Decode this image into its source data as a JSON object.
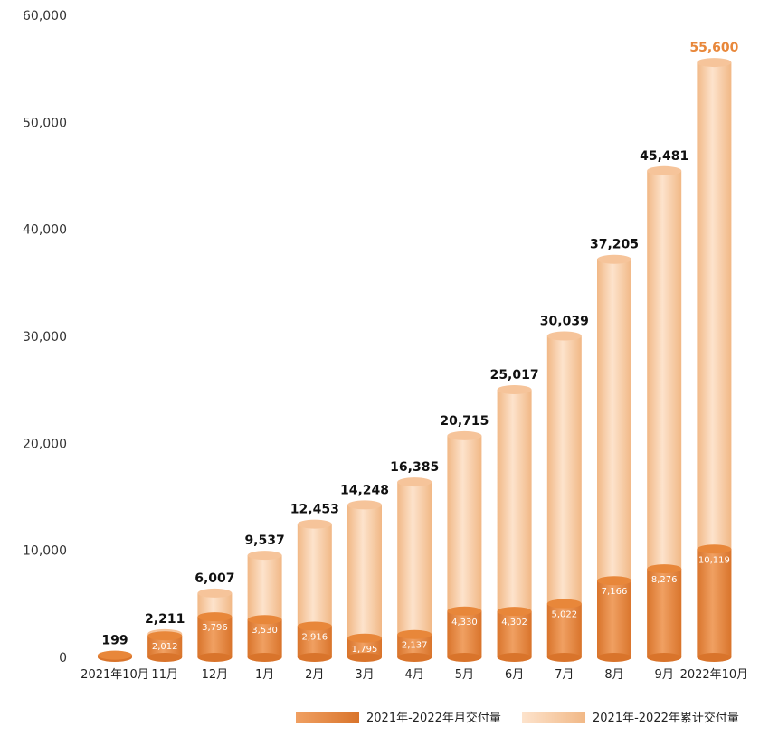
{
  "chart_data": {
    "type": "bar",
    "categories": [
      "2021年10月",
      "11月",
      "12月",
      "1月",
      "2月",
      "3月",
      "4月",
      "5月",
      "6月",
      "7月",
      "8月",
      "9月",
      "2022年10月"
    ],
    "series": [
      {
        "name": "2021年-2022年月交付量",
        "values": [
          199,
          2012,
          3796,
          3530,
          2916,
          1795,
          2137,
          4330,
          4302,
          5022,
          7166,
          8276,
          10119
        ],
        "color": "#e8873a"
      },
      {
        "name": "2021年-2022年累计交付量",
        "values": [
          199,
          2211,
          6007,
          9537,
          12453,
          14248,
          16385,
          20715,
          25017,
          30039,
          37205,
          45481,
          55600
        ],
        "color": "#f6c9a0"
      }
    ],
    "monthly_labels": [
      "",
      "2,012",
      "3,796",
      "3,530",
      "2,916",
      "1,795",
      "2,137",
      "4,330",
      "4,302",
      "5,022",
      "7,166",
      "8,276",
      "10,119"
    ],
    "cumulative_labels": [
      "199",
      "2,211",
      "6,007",
      "9,537",
      "12,453",
      "14,248",
      "16,385",
      "20,715",
      "25,017",
      "30,039",
      "37,205",
      "45,481",
      "55,600"
    ],
    "yticks": [
      "0",
      "10,000",
      "20,000",
      "30,000",
      "40,000",
      "50,000",
      "60,000"
    ],
    "ylim": [
      0,
      60000
    ],
    "legend": {
      "monthly": "2021年-2022年月交付量",
      "cumulative": "2021年-2022年累计交付量"
    },
    "highlight_color": "#e8873a"
  }
}
